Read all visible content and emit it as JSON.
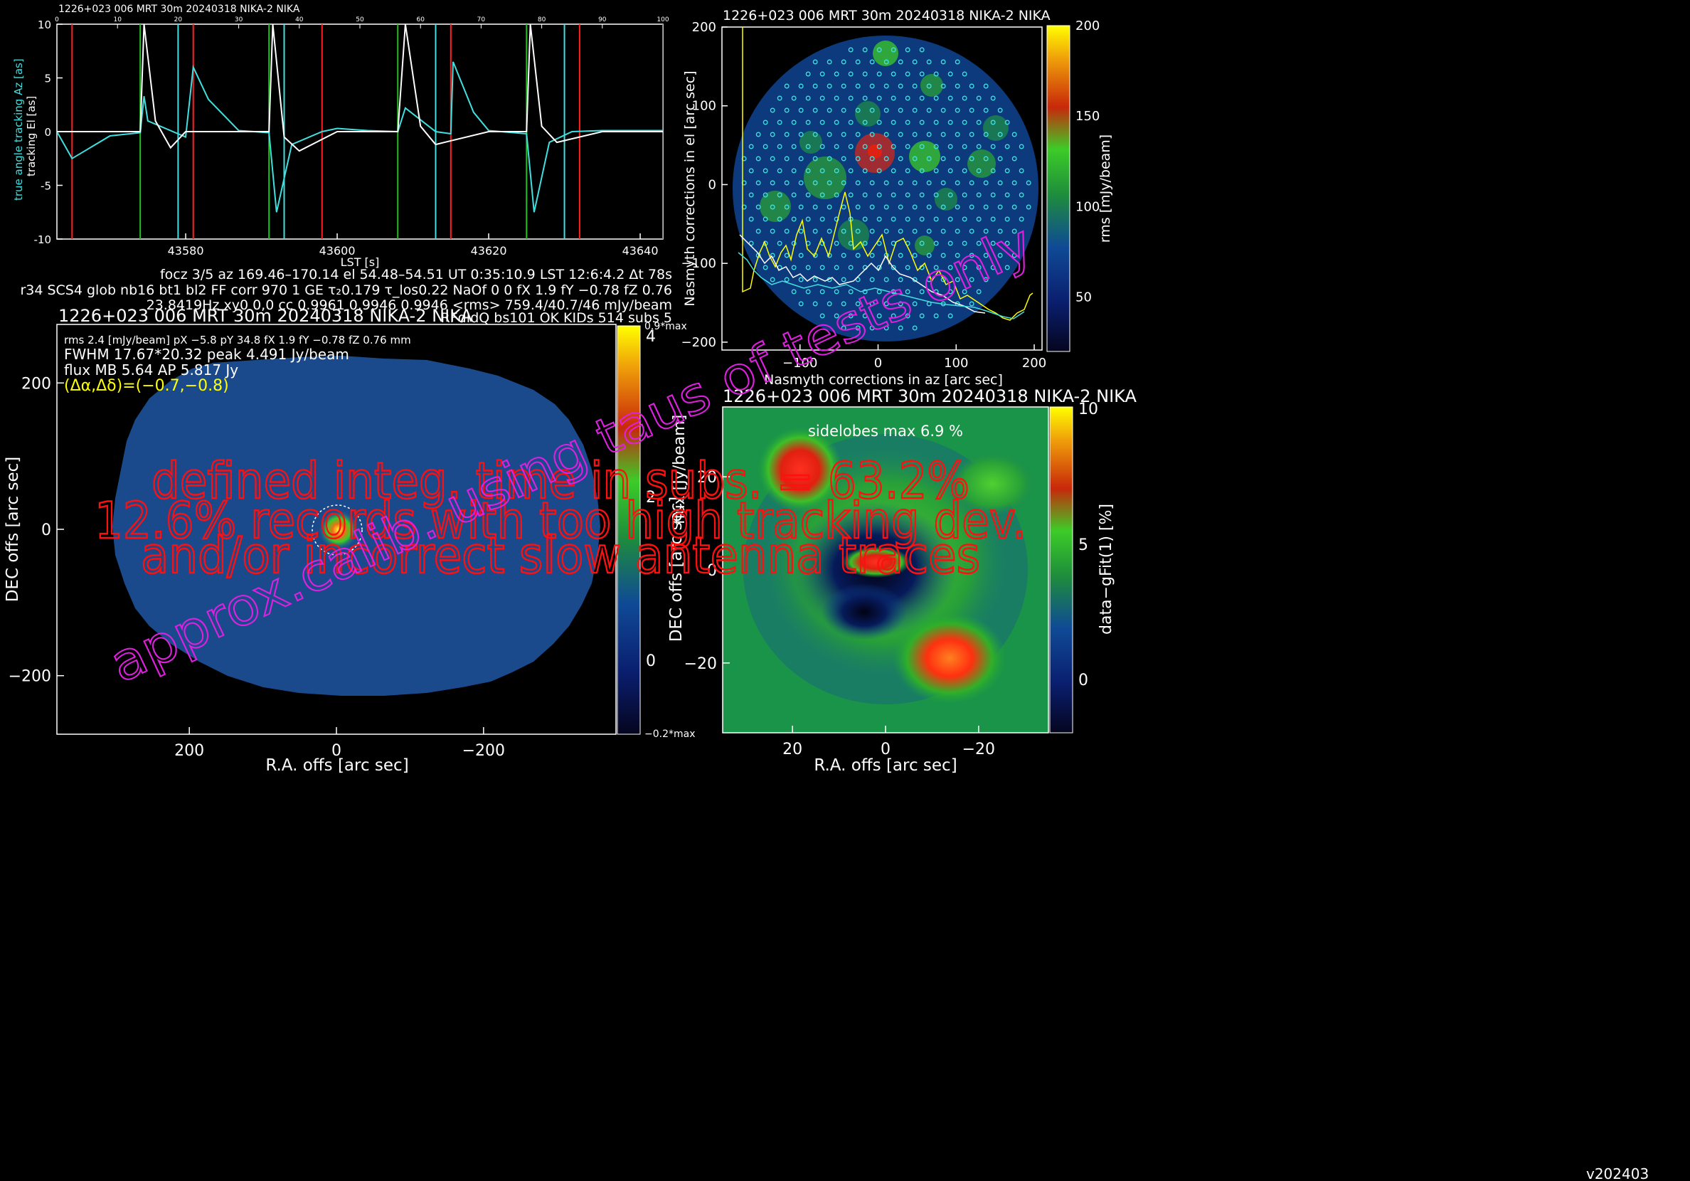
{
  "colors": {
    "background": "#000000",
    "axes": "#ffffff",
    "true_az": "#40e0e0",
    "tracking_el": "#ffffff",
    "red_marker": "#ff2020",
    "green_marker": "#20c020",
    "cyan_marker": "#40e0e0",
    "yellow_text": "#ffff00",
    "magenta_text": "#e020e0",
    "red_overlay": "#ff1010"
  },
  "colormap": [
    "#05051e",
    "#0a1e6e",
    "#0f4a96",
    "#1e8c3c",
    "#3ccc28",
    "#c8280a",
    "#f0c80a",
    "#ffff00"
  ],
  "tracking_panel": {
    "title": "1226+023 006 MRT 30m  20240318 NIKA-2 NIKA",
    "ylabel_az": "true angle tracking Az [as]",
    "ylabel_el": "tracking El [as]",
    "xlabel": "LST [s]",
    "xticks": [
      "43580",
      "43600",
      "43620",
      "43640"
    ],
    "yticks": [
      "10",
      "5",
      "0",
      "-5",
      "-10"
    ],
    "top_ticks": [
      "0",
      "10",
      "20",
      "30",
      "40",
      "50",
      "60",
      "70",
      "80",
      "90",
      "100"
    ]
  },
  "info_lines": [
    "focz 3/5 az 169.46–170.14 el 54.48–54.51 UT 0:35:10.9 LST 12:6:4.2 Δt 78s",
    "r34 SCS4 glob nb16 bt1 bl2 FF corr 970 1 GE τ₂0.179 τ_los0.22 NaOf 0 0 fX 1.9 fY −0.78 fZ 0.76",
    "23.8419Hz xy0 0,0 cc 0.9961 0.9946 0.9946 <rms> 759.4/40.7/46 mJy/beam",
    "RFdIdQ bs101 OK KIDs 514 subs 5"
  ],
  "map_panel": {
    "title": "1226+023 006 MRT 30m  20240318 NIKA-2 NIKA",
    "info1": "rms 2.4 [mJy/beam] pX −5.8 pY 34.8 fX 1.9 fY −0.78 fZ 0.76 mm",
    "info2": "FWHM 17.67*20.32 peak 4.491 Jy/beam",
    "info3": "flux MB 5.64 AP 5.817 Jy",
    "offset": "(Δα,Δδ)=(−0.7,−0.8)",
    "xlabel": "R.A. offs [arc sec]",
    "ylabel": "DEC offs [arc sec]",
    "xticks": [
      "200",
      "0",
      "−200"
    ],
    "yticks": [
      "200",
      "0",
      "−200"
    ],
    "cbar_top": "0.9*max",
    "cbar_bottom": "−0.2*max",
    "cbar_ticks": [
      "4",
      "2",
      "0"
    ],
    "cbar_label": "flux [Jy/beam]"
  },
  "nasmyth_panel": {
    "title": "1226+023 006 MRT 30m  20240318 NIKA-2 NIKA",
    "xlabel": "Nasmyth corrections in az [arc sec]",
    "ylabel": "Nasmyth corrections in el [arc sec]",
    "xticks": [
      "−100",
      "0",
      "100",
      "200"
    ],
    "yticks": [
      "200",
      "100",
      "0",
      "−100",
      "−200"
    ],
    "cbar_ticks": [
      "200",
      "150",
      "100",
      "50"
    ],
    "cbar_label": "rms [mJy/beam]"
  },
  "sidelobe_panel": {
    "title": "1226+023 006 MRT 30m  20240318 NIKA-2 NIKA",
    "annotation": "sidelobes max 6.9 %",
    "xlabel": "R.A. offs [arc sec]",
    "ylabel": "DEC offs [arc sec]",
    "xticks": [
      "20",
      "0",
      "−20"
    ],
    "yticks": [
      "20",
      "0",
      "−20"
    ],
    "cbar_ticks": [
      "10",
      "5",
      "0"
    ],
    "cbar_label": "data−gFit(1) [%]"
  },
  "overlay": {
    "line1": "defined integ. time in subs. = 63.2%",
    "line2": "12.6% records with too high tracking dev.",
    "line3": "and/or incorrect slow antenna traces",
    "diagonal": "approx.calib. using taus of tests only"
  },
  "version": "v202403",
  "chart_data": [
    {
      "type": "line",
      "title": "1226+023 006 MRT 30m  20240318 NIKA-2 NIKA",
      "xlabel": "LST [s]",
      "ylabel": "true angle tracking Az [as] / tracking El [as]",
      "xlim": [
        43563,
        43643
      ],
      "ylim": [
        -10,
        10
      ],
      "series": [
        {
          "name": "true angle tracking Az [as]",
          "x": [
            43563,
            43565,
            43570,
            43574,
            43574.5,
            43575,
            43580,
            43581,
            43583,
            43587,
            43591,
            43592,
            43594,
            43598,
            43600,
            43604,
            43608,
            43609,
            43613,
            43615,
            43615.3,
            43618,
            43620,
            43625,
            43626,
            43628,
            43631,
            43635,
            43640,
            43643
          ],
          "y": [
            0,
            -2.5,
            -0.4,
            -0.1,
            3.3,
            1,
            -0.5,
            6,
            3,
            0.1,
            -0.1,
            -7.5,
            -1.2,
            0,
            0.3,
            0.1,
            0,
            2.2,
            0,
            -0.2,
            6.5,
            1.8,
            0.1,
            -0.2,
            -7.5,
            -1,
            0,
            0.1,
            0.1,
            0.1
          ]
        },
        {
          "name": "tracking El [as]",
          "x": [
            43563,
            43570,
            43574,
            43574.5,
            43576,
            43578,
            43580,
            43585,
            43591,
            43591.5,
            43593,
            43595,
            43600,
            43608,
            43609,
            43611,
            43613,
            43620,
            43625,
            43625.5,
            43627,
            43629,
            43635,
            43643
          ],
          "y": [
            0,
            0,
            0,
            10,
            1,
            -1.5,
            0,
            0,
            0,
            10,
            -0.5,
            -1.8,
            0,
            0,
            10,
            0.5,
            -1.2,
            0,
            0,
            10,
            0.5,
            -1,
            0,
            0
          ]
        }
      ],
      "markers": {
        "red": [
          43565,
          43581,
          43598,
          43615,
          43632
        ],
        "green": [
          43574,
          43591,
          43608,
          43625,
          43643
        ],
        "cyan": [
          43579,
          43593,
          43613,
          43630
        ]
      }
    },
    {
      "type": "heatmap",
      "title": "1226+023 006 MRT 30m  20240318 NIKA-2 NIKA",
      "xlabel": "R.A. offs [arc sec]",
      "ylabel": "DEC offs [arc sec]",
      "xlim": [
        380,
        -380
      ],
      "ylim": [
        -280,
        280
      ],
      "peak": {
        "x": -0.7,
        "y": -0.8,
        "value": 4.491,
        "unit": "Jy/beam"
      },
      "fwhm": [
        17.67,
        20.32
      ],
      "colorbar": {
        "label": "flux [Jy/beam]",
        "range": [
          -0.898,
          4.042
        ]
      }
    },
    {
      "type": "heatmap",
      "title": "1226+023 006 MRT 30m  20240318 NIKA-2 NIKA",
      "xlabel": "Nasmyth corrections in az [arc sec]",
      "ylabel": "Nasmyth corrections in el [arc sec]",
      "xlim": [
        -200,
        210
      ],
      "ylim": [
        -210,
        200
      ],
      "colorbar": {
        "label": "rms [mJy/beam]",
        "range": [
          20,
          200
        ]
      }
    },
    {
      "type": "heatmap",
      "title": "1226+023 006 MRT 30m  20240318 NIKA-2 NIKA",
      "xlabel": "R.A. offs [arc sec]",
      "ylabel": "DEC offs [arc sec]",
      "xlim": [
        35,
        -35
      ],
      "ylim": [
        -35,
        35
      ],
      "annotation": "sidelobes max 6.9 %",
      "colorbar": {
        "label": "data−gFit(1) [%]",
        "range": [
          -2,
          10
        ]
      }
    }
  ]
}
